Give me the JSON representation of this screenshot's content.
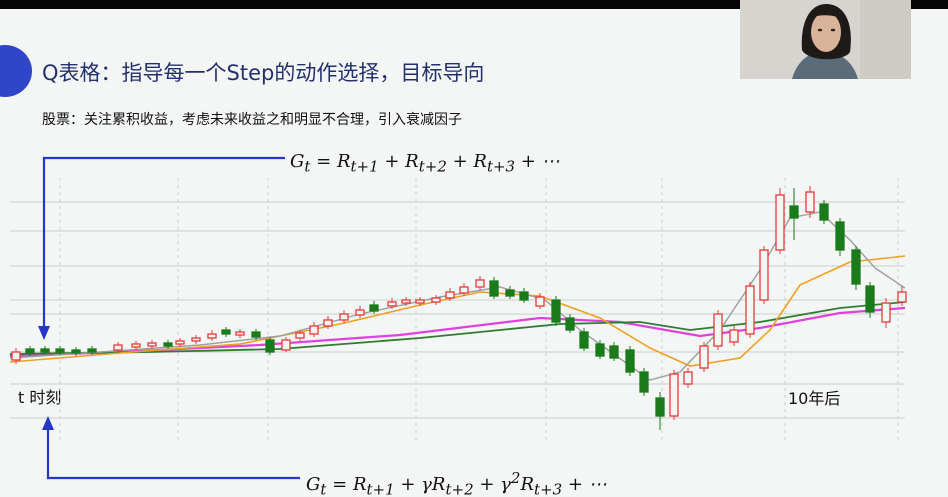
{
  "slide": {
    "title": "Q表格：指导每一个Step的动作选择，目标导向",
    "subtitle": "股票：关注累积收益，考虑未来收益之和明显不合理，引入衰减因子",
    "formula_top": "G_t = R_{t+1} + R_{t+2} + R_{t+3} + ⋯",
    "formula_bottom": "G_t = R_{t+1} + γR_{t+2} + γ²R_{t+3} + ⋯",
    "label_left": "t 时刻",
    "label_right": "10年后"
  },
  "colors": {
    "accent": "#2f46c8",
    "title_text": "#23306e",
    "arrow": "#2437c8",
    "candle_up": "#e53935",
    "candle_down": "#1b7a1b",
    "ma_magenta": "#e040e0",
    "ma_darkgreen": "#2e7d32",
    "ma_orange": "#f0a020",
    "ma_gray": "#9e9e9e"
  },
  "webcam": {
    "icon": "presenter-webcam-feed"
  }
}
